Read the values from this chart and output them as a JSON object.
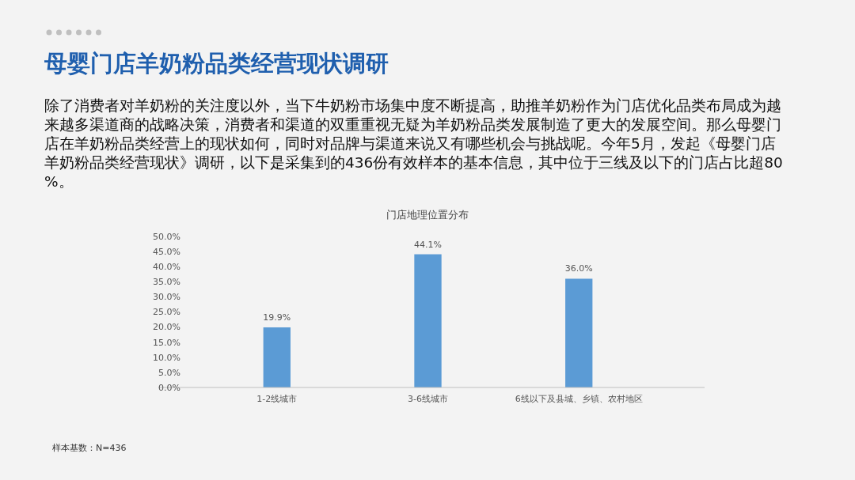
{
  "chart_data": {
    "type": "bar",
    "title": "母婴门店羊奶粉品类经营现状调研",
    "subtitle": "门店地理位置分布",
    "annotations": [
      "除了消费者对羊奶粉的关注度以外，当下牛奶粉市场集中度不断提高，助推羊奶粉作为门店优化品类布局成为越来越多渠道商的战略决策，消费者和渠道的双重重视无疑为羊奶粉品类发展制造了更大的发展空间。那么母婴门店在羊奶粉品类经营上的现状如何，同时对品牌与渠道来说又有哪些机会与挑战呢。今年5月，发起《母婴门店羊奶粉品类经营现状》调研，以下是采集到的436份有效样本的基本信息，其中位于三线及以下的门店占比超80%。",
      "样本基数：N=436"
    ],
    "categories": [
      "1-2线城市",
      "3-6线城市",
      "6线以下及县城、乡镇、农村地区"
    ],
    "values": [
      19.9,
      44.1,
      36.0
    ],
    "value_labels": [
      "19.9%",
      "44.1%",
      "36.0%"
    ],
    "color": "#5b9bd5",
    "ylim": [
      0,
      50
    ],
    "yticks": [
      {
        "value": 0,
        "label": "0.0%"
      },
      {
        "value": 5,
        "label": "5.0%"
      },
      {
        "value": 10,
        "label": "10.0%"
      },
      {
        "value": 15,
        "label": "15.0%"
      },
      {
        "value": 20,
        "label": "20.0%"
      },
      {
        "value": 25,
        "label": "25.0%"
      },
      {
        "value": 30,
        "label": "30.0%"
      },
      {
        "value": 35,
        "label": "35.0%"
      },
      {
        "value": 40,
        "label": "40.0%"
      },
      {
        "value": 45,
        "label": "45.0%"
      },
      {
        "value": 50,
        "label": "50.0%"
      }
    ],
    "grid": false
  }
}
